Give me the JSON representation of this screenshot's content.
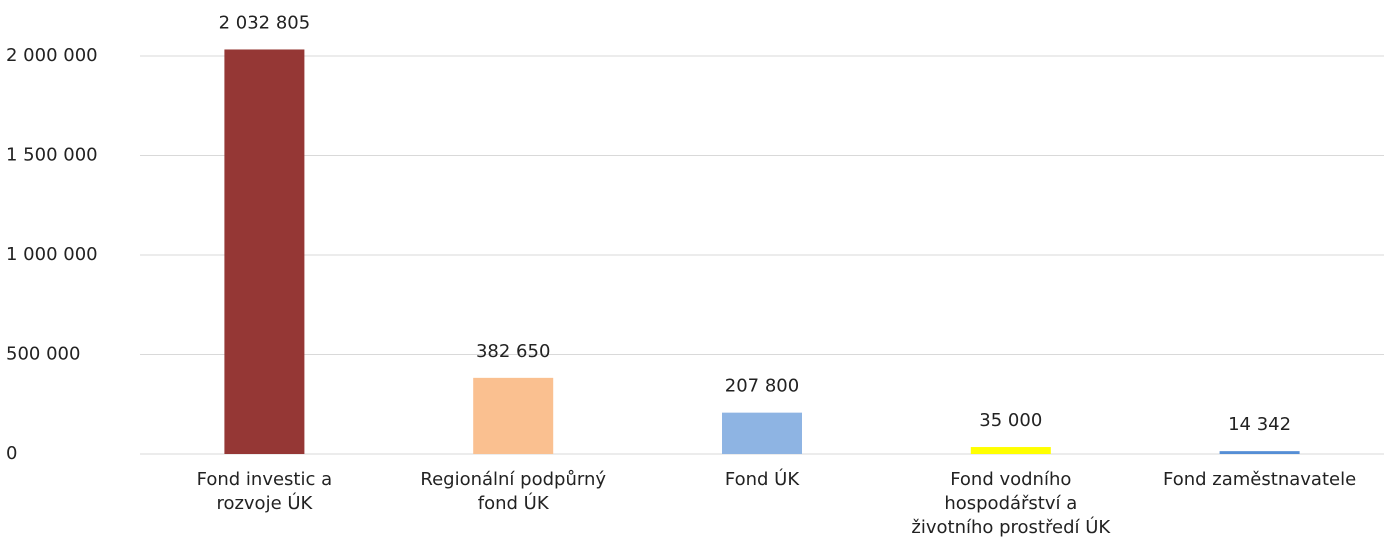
{
  "chart_data": {
    "type": "bar",
    "categories": [
      "Fond investic a rozvoje ÚK",
      "Regionální podpůrný fond ÚK",
      "Fond ÚK",
      "Fond vodního hospodářství a životního prostředí ÚK",
      "Fond zaměstnavatele"
    ],
    "values": [
      2032805,
      382650,
      207800,
      35000,
      14342
    ],
    "value_labels": [
      "2 032 805",
      "382 650",
      "207 800",
      "35 000",
      "14 342"
    ],
    "colors": [
      "#953735",
      "#fac090",
      "#8eb4e3",
      "#ffff00",
      "#558ed5"
    ],
    "ylim": [
      0,
      2000000
    ],
    "yticks": [
      0,
      {
        "value": 500000,
        "label": "500 000"
      },
      {
        "value": 1000000,
        "label": "1 000 000"
      },
      {
        "value": 1500000,
        "label": "1 500 000"
      },
      {
        "value": 2000000,
        "label": "2 000 000"
      }
    ],
    "grid": true
  }
}
